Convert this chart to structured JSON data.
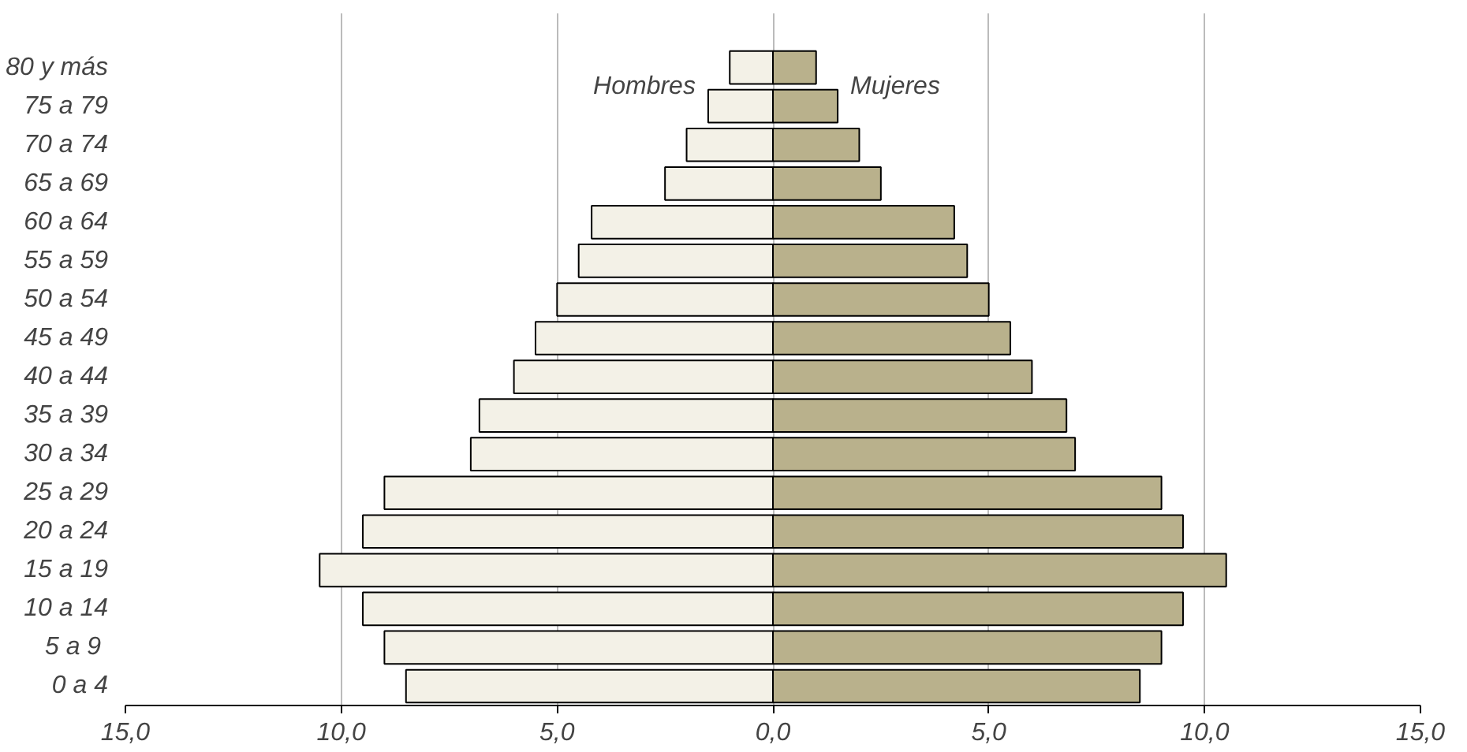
{
  "chart_data": {
    "type": "bar",
    "orientation": "horizontal",
    "stacked": true,
    "categories": [
      "80 y más",
      "75 a 79",
      "70 a 74",
      "65 a 69",
      "60 a 64",
      "55 a 59",
      "50 a 54",
      "45 a 49",
      "40 a 44",
      "35 a 39",
      "30 a 34",
      "25 a 29",
      "20 a 24",
      "15 a 19",
      "10 a 14",
      "5 a  9",
      "0 a 4"
    ],
    "series": [
      {
        "name": "Hombres",
        "color": "#f3f1e7",
        "values": [
          -1.0,
          -1.5,
          -2.0,
          -2.5,
          -4.2,
          -4.5,
          -5.0,
          -5.5,
          -6.0,
          -6.8,
          -7.0,
          -9.0,
          -9.5,
          -10.5,
          -9.5,
          -9.0,
          -8.5
        ]
      },
      {
        "name": "Mujeres",
        "color": "#b9b18c",
        "values": [
          1.0,
          1.5,
          2.0,
          2.5,
          4.2,
          4.5,
          5.0,
          5.5,
          6.0,
          6.8,
          7.0,
          9.0,
          9.5,
          10.5,
          9.5,
          9.0,
          8.5
        ]
      }
    ],
    "xlim": [
      -15,
      15
    ],
    "xticks": [
      {
        "value": -15,
        "label": "15,0"
      },
      {
        "value": -10,
        "label": "10,0"
      },
      {
        "value": -5,
        "label": "5,0"
      },
      {
        "value": 0,
        "label": "0,0"
      },
      {
        "value": 5,
        "label": "5,0"
      },
      {
        "value": 10,
        "label": "10,0"
      },
      {
        "value": 15,
        "label": "15,0"
      }
    ],
    "grid": "x"
  }
}
